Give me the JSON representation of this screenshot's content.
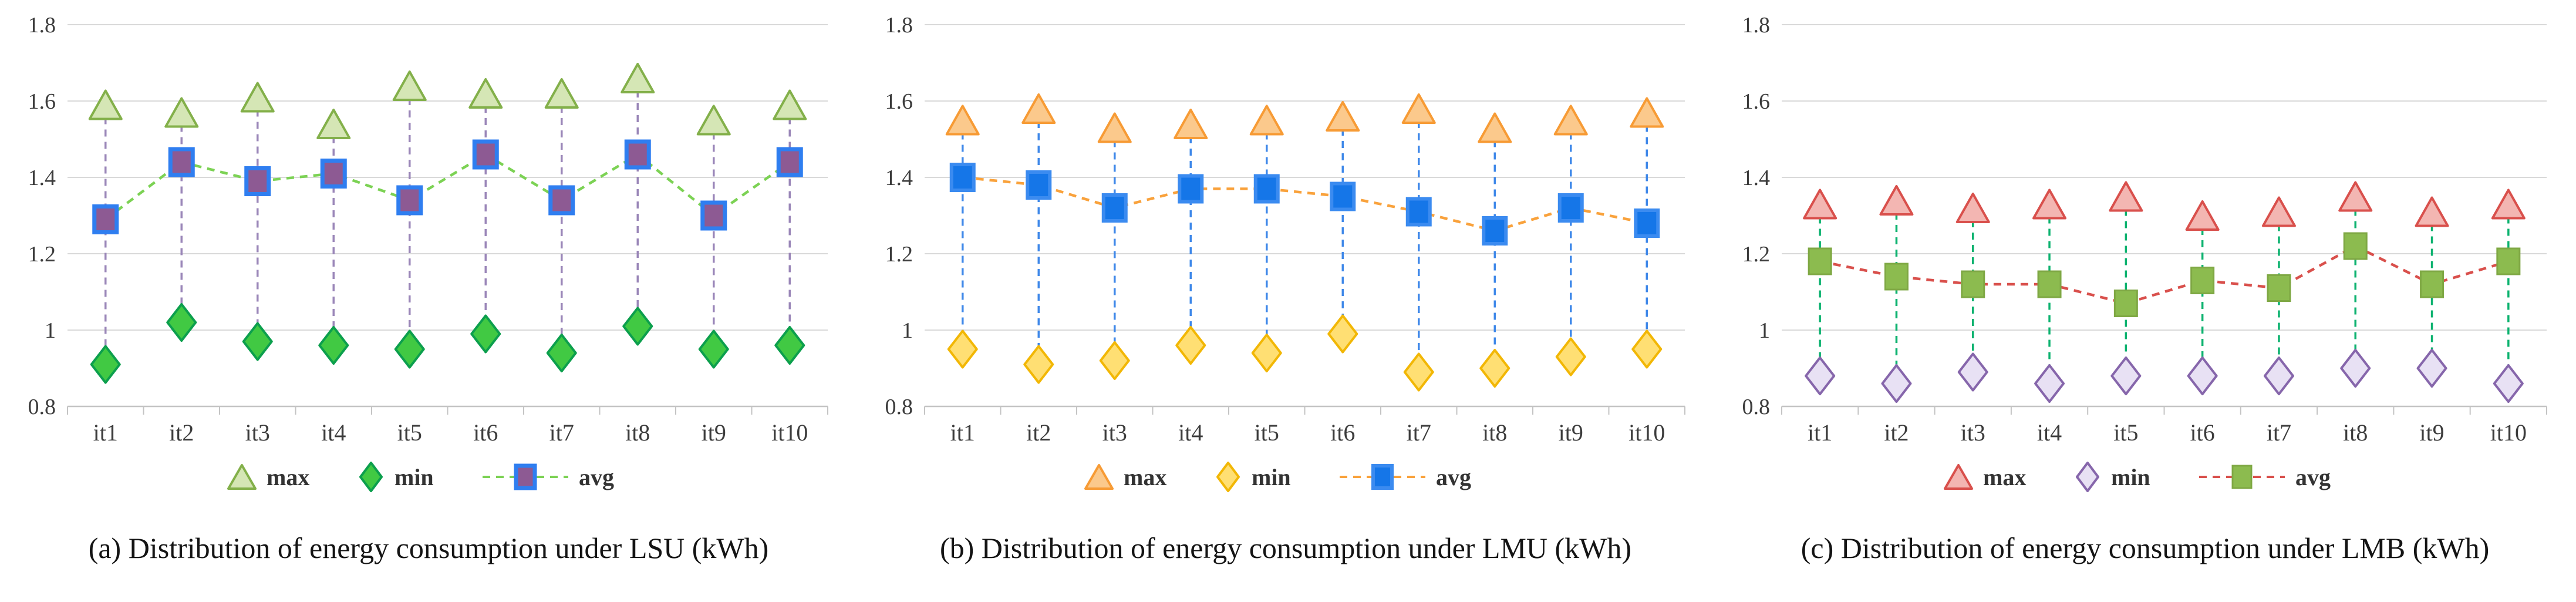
{
  "page": {
    "background": "#ffffff"
  },
  "legend": {
    "max_label": "max",
    "min_label": "min",
    "avg_label": "avg"
  },
  "chart_data": [
    {
      "type": "scatter",
      "panel_label": "a",
      "caption": "(a) Distribution of energy consumption under LSU (kWh)",
      "categories": [
        "it1",
        "it2",
        "it3",
        "it4",
        "it5",
        "it6",
        "it7",
        "it8",
        "it9",
        "it10"
      ],
      "series": [
        {
          "name": "max",
          "marker": "triangle",
          "values": [
            1.59,
            1.57,
            1.61,
            1.54,
            1.64,
            1.62,
            1.62,
            1.66,
            1.55,
            1.59
          ]
        },
        {
          "name": "min",
          "marker": "diamond",
          "values": [
            0.91,
            1.02,
            0.97,
            0.96,
            0.95,
            0.99,
            0.94,
            1.01,
            0.95,
            0.96
          ]
        },
        {
          "name": "avg",
          "marker": "square",
          "line": "dashed",
          "values": [
            1.29,
            1.44,
            1.39,
            1.41,
            1.34,
            1.46,
            1.34,
            1.46,
            1.3,
            1.44
          ]
        }
      ],
      "ylim": [
        0.8,
        1.8
      ],
      "yticks": [
        1.8,
        1.6,
        1.4,
        1.2,
        1.0,
        0.8
      ],
      "ytick_labels": [
        "1.8",
        "1.6",
        "1.4",
        "1.2",
        "1",
        "0.8"
      ],
      "grid": true,
      "legend_position": "bottom",
      "colors": {
        "triangle_fill": "#d5e6b5",
        "triangle_stroke": "#83b04a",
        "diamond_fill": "#41c943",
        "diamond_stroke": "#0c9f4d",
        "square_fill": "#8d5a93",
        "square_stroke": "#2f7ef0",
        "square_stroke_width": 7,
        "avg_line": "#7cd254",
        "hilo_line": "#9a86b8"
      }
    },
    {
      "type": "scatter",
      "panel_label": "b",
      "caption": "(b) Distribution of energy consumption under LMU (kWh)",
      "categories": [
        "it1",
        "it2",
        "it3",
        "it4",
        "it5",
        "it6",
        "it7",
        "it8",
        "it9",
        "it10"
      ],
      "series": [
        {
          "name": "max",
          "marker": "triangle",
          "values": [
            1.55,
            1.58,
            1.53,
            1.54,
            1.55,
            1.56,
            1.58,
            1.53,
            1.55,
            1.57
          ]
        },
        {
          "name": "min",
          "marker": "diamond",
          "values": [
            0.95,
            0.91,
            0.92,
            0.96,
            0.94,
            0.99,
            0.89,
            0.9,
            0.93,
            0.95
          ]
        },
        {
          "name": "avg",
          "marker": "square",
          "line": "dashed",
          "values": [
            1.4,
            1.38,
            1.32,
            1.37,
            1.37,
            1.35,
            1.31,
            1.26,
            1.32,
            1.28
          ]
        }
      ],
      "ylim": [
        0.8,
        1.8
      ],
      "yticks": [
        1.8,
        1.6,
        1.4,
        1.2,
        1.0,
        0.8
      ],
      "ytick_labels": [
        "1.8",
        "1.6",
        "1.4",
        "1.2",
        "1",
        "0.8"
      ],
      "grid": true,
      "legend_position": "bottom",
      "colors": {
        "triangle_fill": "#fbc98c",
        "triangle_stroke": "#f79b35",
        "diamond_fill": "#ffdf73",
        "diamond_stroke": "#f2b705",
        "square_fill": "#1576e8",
        "square_stroke": "#3b8bf0",
        "square_stroke_width": 6,
        "avg_line": "#f9a23c",
        "hilo_line": "#3f88e9"
      }
    },
    {
      "type": "scatter",
      "panel_label": "c",
      "caption": "(c) Distribution of energy consumption under LMB (kWh)",
      "categories": [
        "it1",
        "it2",
        "it3",
        "it4",
        "it5",
        "it6",
        "it7",
        "it8",
        "it9",
        "it10"
      ],
      "series": [
        {
          "name": "max",
          "marker": "triangle",
          "values": [
            1.33,
            1.34,
            1.32,
            1.33,
            1.35,
            1.3,
            1.31,
            1.35,
            1.31,
            1.33
          ]
        },
        {
          "name": "min",
          "marker": "diamond",
          "values": [
            0.88,
            0.86,
            0.89,
            0.86,
            0.88,
            0.88,
            0.88,
            0.9,
            0.9,
            0.86
          ]
        },
        {
          "name": "avg",
          "marker": "square",
          "line": "dashed",
          "values": [
            1.18,
            1.14,
            1.12,
            1.12,
            1.07,
            1.13,
            1.11,
            1.22,
            1.12,
            1.18
          ]
        }
      ],
      "ylim": [
        0.8,
        1.8
      ],
      "yticks": [
        1.8,
        1.6,
        1.4,
        1.2,
        1.0,
        0.8
      ],
      "ytick_labels": [
        "1.8",
        "1.6",
        "1.4",
        "1.2",
        "1",
        "0.8"
      ],
      "grid": true,
      "legend_position": "bottom",
      "colors": {
        "triangle_fill": "#f3b6b2",
        "triangle_stroke": "#d9504c",
        "diamond_fill": "#e8e1f4",
        "diamond_stroke": "#8666ab",
        "square_fill": "#8cbb4f",
        "square_stroke": "#7fa844",
        "square_stroke_width": 3,
        "avg_line": "#d9504c",
        "hilo_line": "#0cb26f"
      }
    }
  ],
  "style": {
    "gridline_color": "#d9d9d9",
    "axis_color": "#c4c4c4",
    "tick_label_color": "#3c3c3c",
    "legend_label_color": "#333333",
    "caption_color": "#141414"
  }
}
